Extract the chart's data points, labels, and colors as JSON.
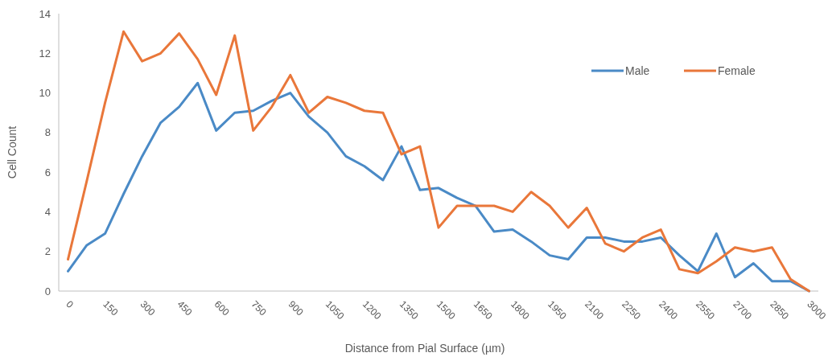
{
  "chart_data": {
    "type": "line",
    "xlabel": "Distance from Pial Surface (µm)",
    "ylabel": "Cell Count",
    "x": [
      0,
      75,
      150,
      225,
      300,
      375,
      450,
      525,
      600,
      675,
      750,
      825,
      900,
      975,
      1050,
      1125,
      1200,
      1275,
      1350,
      1425,
      1500,
      1575,
      1650,
      1725,
      1800,
      1875,
      1950,
      2025,
      2100,
      2175,
      2250,
      2325,
      2400,
      2475,
      2550,
      2625,
      2700,
      2775,
      2850,
      2925,
      3000
    ],
    "series": [
      {
        "name": "Male",
        "color": "#4a8ac6",
        "values": [
          1.0,
          2.3,
          2.9,
          4.9,
          6.8,
          8.5,
          9.3,
          10.5,
          8.1,
          9.0,
          9.1,
          9.6,
          10.0,
          8.8,
          8.0,
          6.8,
          6.3,
          5.6,
          7.3,
          5.1,
          5.2,
          4.7,
          4.3,
          3.0,
          3.1,
          2.5,
          1.8,
          1.6,
          2.7,
          2.7,
          2.5,
          2.5,
          2.7,
          1.8,
          1.0,
          2.9,
          0.7,
          1.4,
          0.5,
          0.5,
          0
        ]
      },
      {
        "name": "Female",
        "color": "#e9773a",
        "values": [
          1.6,
          5.5,
          9.5,
          13.1,
          11.6,
          12.0,
          13.0,
          11.7,
          9.9,
          12.9,
          8.1,
          9.3,
          10.9,
          9.0,
          9.8,
          9.5,
          9.1,
          9.0,
          6.9,
          7.3,
          3.2,
          4.3,
          4.3,
          4.3,
          4.0,
          5.0,
          4.3,
          3.2,
          4.2,
          2.4,
          2.0,
          2.7,
          3.1,
          1.1,
          0.9,
          1.5,
          2.2,
          2.0,
          2.2,
          0.6,
          0
        ]
      }
    ],
    "xlim": [
      -37.5,
      3037.5
    ],
    "xticks": [
      0,
      150,
      300,
      450,
      600,
      750,
      900,
      1050,
      1200,
      1350,
      1500,
      1650,
      1800,
      1950,
      2100,
      2250,
      2400,
      2550,
      2700,
      2850,
      3000
    ],
    "ylim": [
      0,
      14
    ],
    "yticks": [
      0,
      2,
      4,
      6,
      8,
      10,
      12,
      14
    ],
    "grid": false,
    "legend": "top right",
    "marker": "none",
    "line_style": "solid"
  }
}
